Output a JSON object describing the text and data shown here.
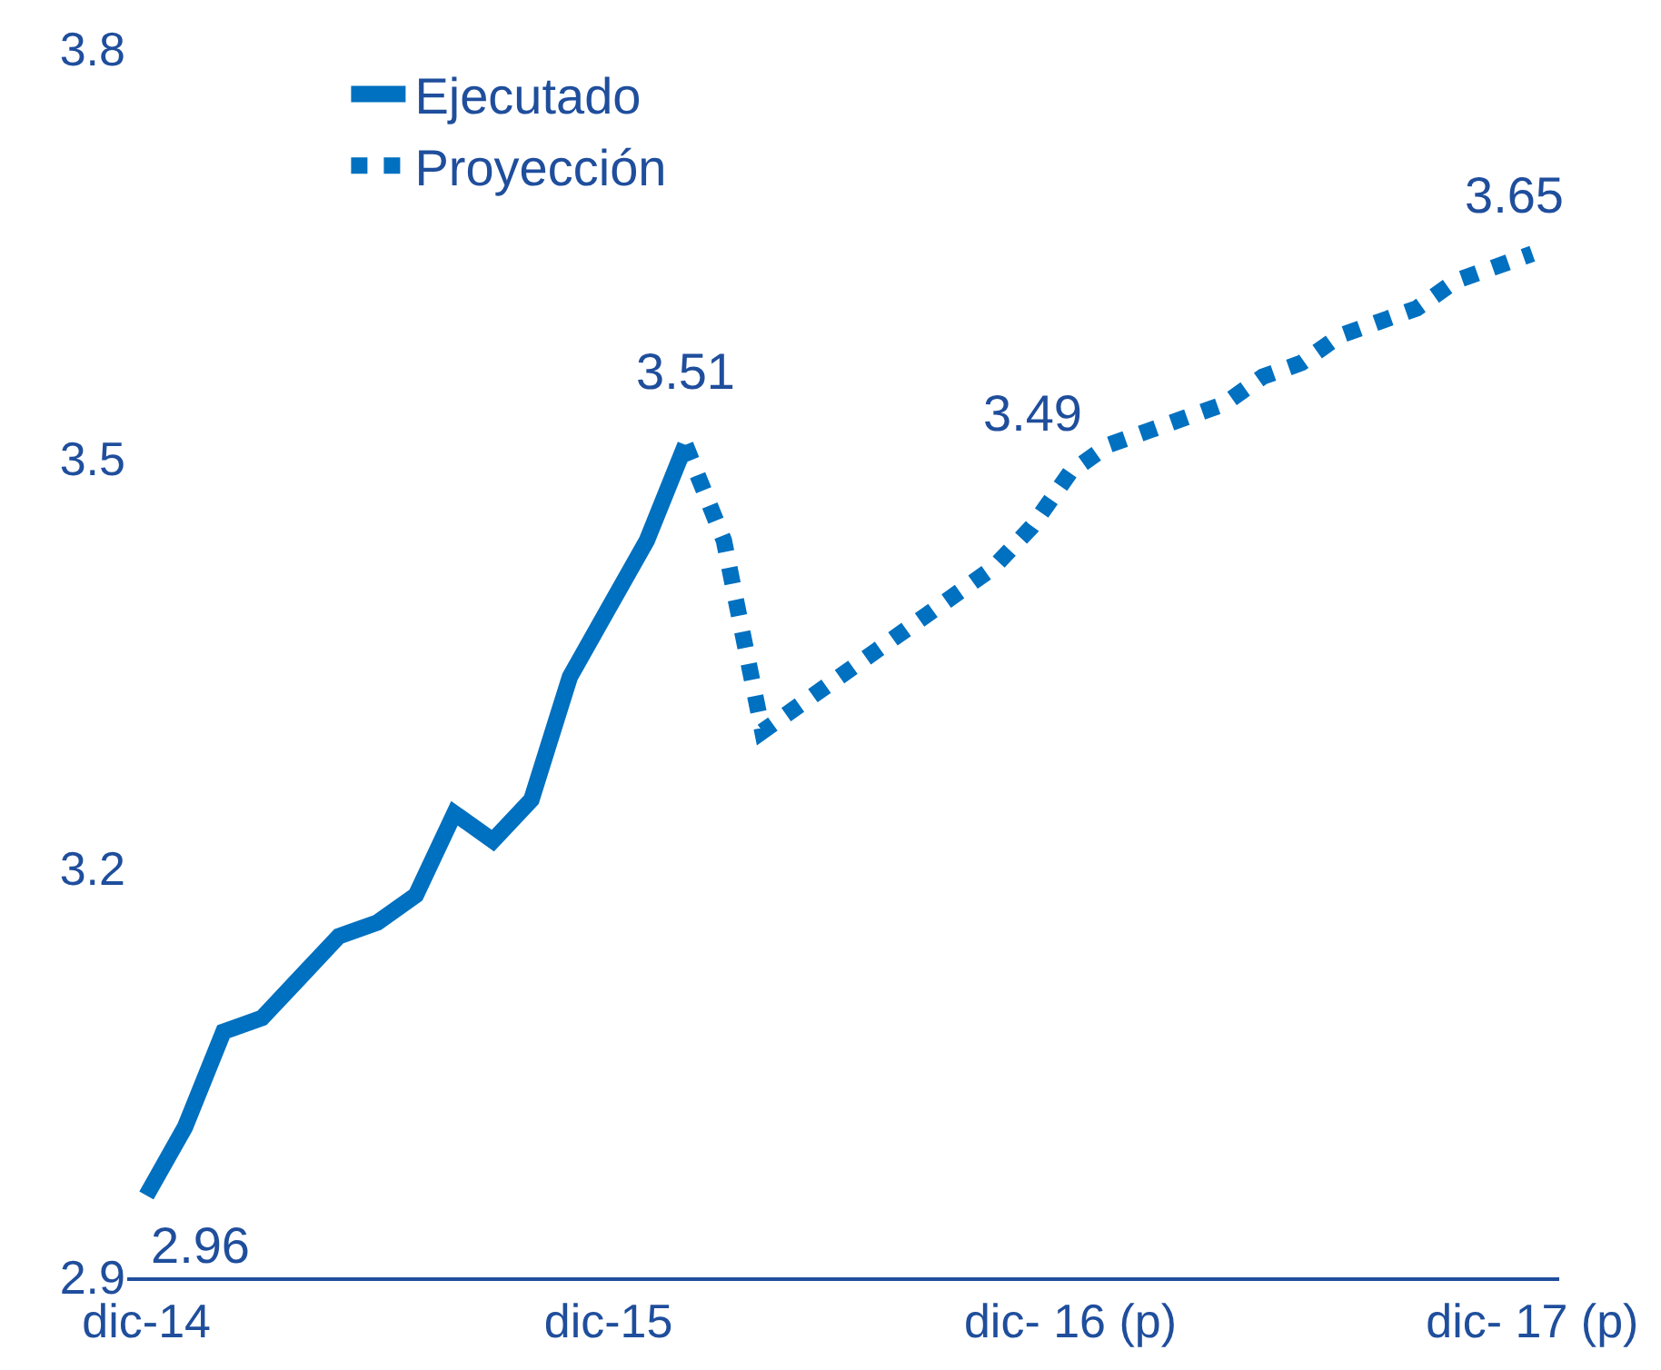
{
  "chart_data": {
    "type": "line",
    "legend": "top left",
    "categories": [
      "dic-14",
      null,
      null,
      null,
      null,
      null,
      null,
      null,
      null,
      null,
      null,
      null,
      "dic-15",
      null,
      null,
      null,
      null,
      null,
      null,
      null,
      null,
      null,
      null,
      null,
      "dic- 16 (p)",
      null,
      null,
      null,
      null,
      null,
      null,
      null,
      null,
      null,
      null,
      null,
      "dic- 17 (p)"
    ],
    "ylim": [
      2.9,
      3.8
    ],
    "yticks": [
      2.9,
      3.2,
      3.5,
      3.8
    ],
    "series": [
      {
        "name": "Ejecutado",
        "color": "#0070c0",
        "line_style": "solid",
        "values": [
          2.96,
          3.01,
          3.08,
          3.09,
          3.12,
          3.15,
          3.16,
          3.18,
          3.24,
          3.22,
          3.25,
          3.34,
          3.39,
          3.44,
          3.51,
          null,
          null,
          null,
          null,
          null,
          null,
          null,
          null,
          null,
          null,
          null,
          null,
          null,
          null,
          null,
          null,
          null,
          null,
          null,
          null,
          null,
          null
        ],
        "value_labels": [
          "2.96",
          null,
          null,
          null,
          null,
          null,
          null,
          null,
          null,
          null,
          null,
          null,
          null,
          null,
          "3.51",
          null,
          null,
          null,
          null,
          null,
          null,
          null,
          null,
          null,
          null,
          null,
          null,
          null,
          null,
          null,
          null,
          null,
          null,
          null,
          null,
          null,
          null
        ]
      },
      {
        "name": "Proyección",
        "color": "#0070c0",
        "line_style": "dotted",
        "values": [
          null,
          null,
          null,
          null,
          null,
          null,
          null,
          null,
          null,
          null,
          null,
          null,
          null,
          null,
          3.51,
          3.44,
          3.3,
          3.32,
          3.34,
          3.36,
          3.38,
          3.4,
          3.42,
          3.45,
          3.49,
          3.51,
          3.52,
          3.53,
          3.54,
          3.56,
          3.57,
          3.59,
          3.6,
          3.61,
          3.63,
          3.64,
          3.65
        ],
        "value_labels": [
          null,
          null,
          null,
          null,
          null,
          null,
          null,
          null,
          null,
          null,
          null,
          null,
          null,
          null,
          null,
          null,
          null,
          null,
          null,
          null,
          null,
          null,
          null,
          null,
          "3.49",
          null,
          null,
          null,
          null,
          null,
          null,
          null,
          null,
          null,
          null,
          null,
          "3.65"
        ]
      }
    ]
  }
}
